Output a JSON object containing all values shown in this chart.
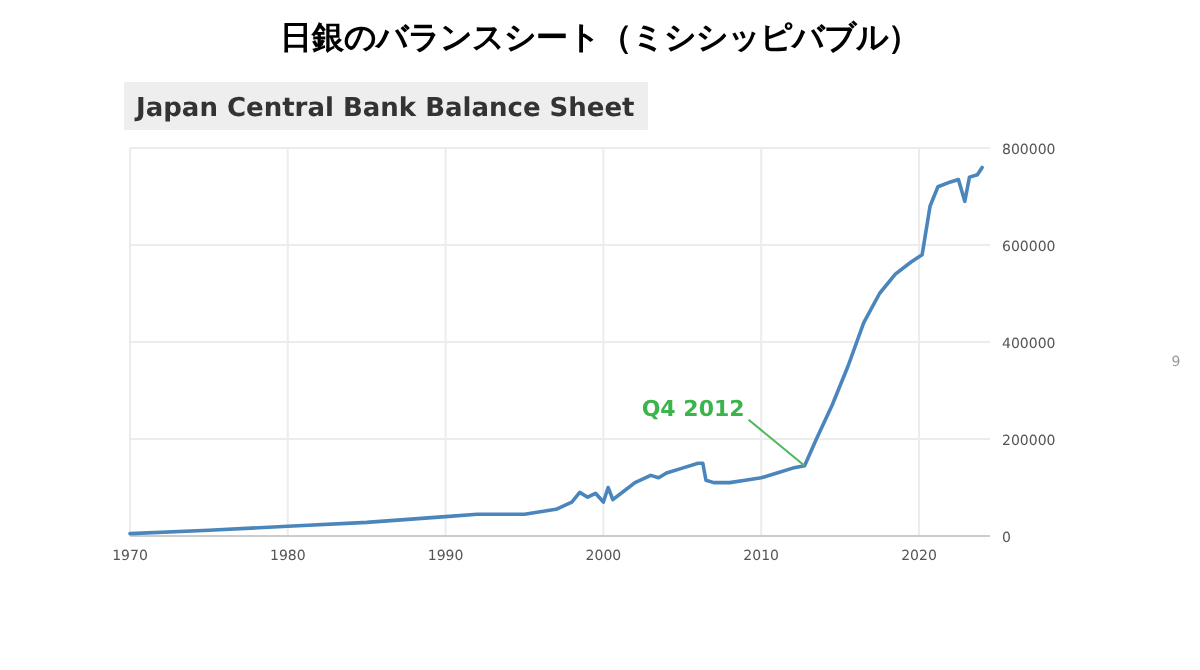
{
  "chart_data": {
    "type": "line",
    "title": "日銀のバランスシート（ミシシッピバブル）",
    "subtitle": "Japan Central Bank Balance Sheet",
    "annotations": [
      {
        "text": "Q4 2012",
        "x": 2012.75,
        "y": 145000
      },
      "9"
    ],
    "series": [
      {
        "color": "#4a86bb",
        "x": [
          1970,
          1975,
          1980,
          1985,
          1990,
          1992,
          1995,
          1997,
          1998,
          1998.5,
          1999,
          1999.5,
          2000,
          2000.3,
          2000.6,
          2001,
          2002,
          2003,
          2003.5,
          2004,
          2005,
          2006,
          2006.3,
          2006.5,
          2007,
          2008,
          2009,
          2010,
          2011,
          2012,
          2012.75,
          2013.5,
          2014.5,
          2015.5,
          2016.5,
          2017.5,
          2018.5,
          2019.5,
          2020.2,
          2020.7,
          2021.2,
          2022,
          2022.5,
          2022.9,
          2023.2,
          2023.7,
          2024
        ],
        "values": [
          5000,
          12000,
          20000,
          28000,
          40000,
          45000,
          45000,
          55000,
          70000,
          90000,
          80000,
          88000,
          70000,
          100000,
          75000,
          85000,
          110000,
          125000,
          120000,
          130000,
          140000,
          150000,
          150000,
          115000,
          110000,
          110000,
          115000,
          120000,
          130000,
          140000,
          145000,
          200000,
          270000,
          350000,
          440000,
          500000,
          540000,
          565000,
          580000,
          680000,
          720000,
          730000,
          735000,
          690000,
          740000,
          745000,
          760000
        ]
      }
    ],
    "xlim": [
      1970,
      2024.5
    ],
    "xticks": [
      1970,
      1980,
      1990,
      2000,
      2010,
      2020
    ],
    "ylim": [
      0,
      800000
    ],
    "yticks": [
      0,
      200000,
      400000,
      600000,
      800000
    ],
    "grid": true,
    "marker": "none",
    "line_style": "solid"
  }
}
